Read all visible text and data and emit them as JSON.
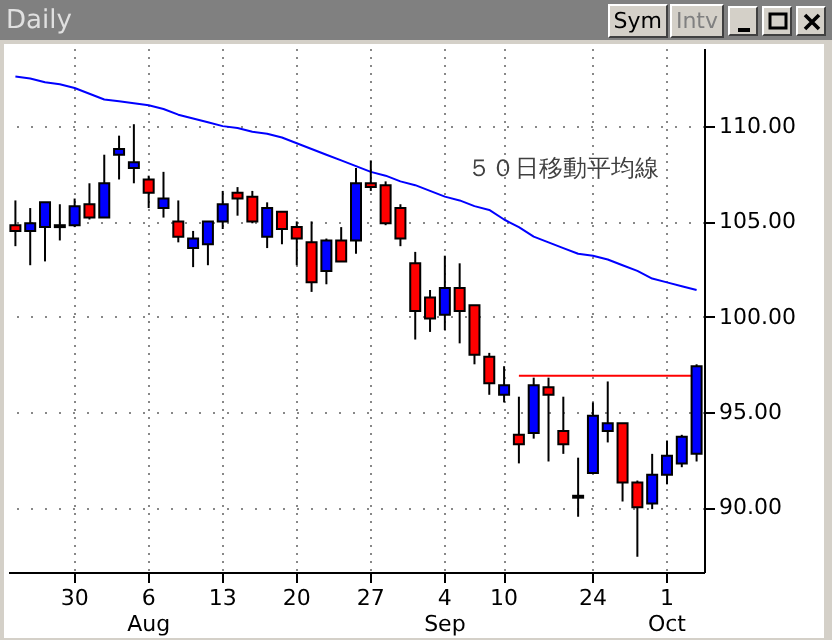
{
  "chart_data": {
    "type": "candlestick",
    "title": "Daily",
    "annotations": [
      "Sym",
      "Intv"
    ],
    "categories": [
      null,
      null,
      null,
      null,
      "30",
      null,
      null,
      null,
      null,
      "6\nAug",
      null,
      null,
      null,
      null,
      "13",
      null,
      null,
      null,
      null,
      "20",
      null,
      null,
      null,
      null,
      "27",
      null,
      null,
      null,
      null,
      "4\nSep",
      null,
      null,
      null,
      "10",
      null,
      null,
      null,
      null,
      null,
      "24",
      null,
      null,
      null,
      null,
      "1\nOct",
      null,
      null
    ],
    "ohlc": [
      [
        104.8,
        106.1,
        103.7,
        104.5
      ],
      [
        104.5,
        105.7,
        102.7,
        104.9
      ],
      [
        104.7,
        106.0,
        102.9,
        106.0
      ],
      [
        104.7,
        105.9,
        104.0,
        104.8
      ],
      [
        104.8,
        106.2,
        104.7,
        105.8
      ],
      [
        105.9,
        107.0,
        105.1,
        105.2
      ],
      [
        105.2,
        108.5,
        105.2,
        107.0
      ],
      [
        108.5,
        109.5,
        107.2,
        108.8
      ],
      [
        107.8,
        110.1,
        107.0,
        108.1
      ],
      [
        107.2,
        107.4,
        105.7,
        106.5
      ],
      [
        105.7,
        107.6,
        105.2,
        106.2
      ],
      [
        105.0,
        106.1,
        103.9,
        104.2
      ],
      [
        103.6,
        104.5,
        102.6,
        104.1
      ],
      [
        103.8,
        105.0,
        102.7,
        105.0
      ],
      [
        105.0,
        106.6,
        104.6,
        105.9
      ],
      [
        106.5,
        106.8,
        105.3,
        106.2
      ],
      [
        106.3,
        106.6,
        104.9,
        105.0
      ],
      [
        104.2,
        106.0,
        103.6,
        105.7
      ],
      [
        105.5,
        105.5,
        103.8,
        104.6
      ],
      [
        104.7,
        105.0,
        102.7,
        104.1
      ],
      [
        103.9,
        105.0,
        101.3,
        101.8
      ],
      [
        102.4,
        104.1,
        101.7,
        104.0
      ],
      [
        104.0,
        104.7,
        102.9,
        102.9
      ],
      [
        104.0,
        107.8,
        103.3,
        107.0
      ],
      [
        107.0,
        108.2,
        106.6,
        106.8
      ],
      [
        106.9,
        107.1,
        104.8,
        104.9
      ],
      [
        105.7,
        105.9,
        103.7,
        104.1
      ],
      [
        102.8,
        103.4,
        98.8,
        100.3
      ],
      [
        101.0,
        101.4,
        99.2,
        99.9
      ],
      [
        100.1,
        103.2,
        99.3,
        101.5
      ],
      [
        101.5,
        102.8,
        98.6,
        100.3
      ],
      [
        100.6,
        100.6,
        97.5,
        98.0
      ],
      [
        97.9,
        98.1,
        95.9,
        96.5
      ],
      [
        95.9,
        97.4,
        95.5,
        96.4
      ],
      [
        93.8,
        95.8,
        92.3,
        93.3
      ],
      [
        93.9,
        96.8,
        93.6,
        96.4
      ],
      [
        96.3,
        96.8,
        92.4,
        95.9
      ],
      [
        94.0,
        95.8,
        92.8,
        93.3
      ],
      [
        90.6,
        92.6,
        89.5,
        90.5
      ],
      [
        91.8,
        95.5,
        91.8,
        94.8
      ],
      [
        94.0,
        96.6,
        93.4,
        94.4
      ],
      [
        94.4,
        94.4,
        90.3,
        91.3
      ],
      [
        91.3,
        91.4,
        87.4,
        90.0
      ],
      [
        90.2,
        92.8,
        89.9,
        91.7
      ],
      [
        91.7,
        93.5,
        91.2,
        92.7
      ],
      [
        92.3,
        93.8,
        92.1,
        93.7
      ],
      [
        92.8,
        97.5,
        92.4,
        97.4
      ]
    ],
    "colors": [
      "#ff0000",
      "#0000ff",
      "#0000ff",
      "#0000ff",
      "#0000ff",
      "#ff0000",
      "#0000ff",
      "#0000ff",
      "#0000ff",
      "#ff0000",
      "#0000ff",
      "#ff0000",
      "#0000ff",
      "#0000ff",
      "#0000ff",
      "#ff0000",
      "#ff0000",
      "#0000ff",
      "#ff0000",
      "#ff0000",
      "#ff0000",
      "#0000ff",
      "#ff0000",
      "#0000ff",
      "#ff0000",
      "#ff0000",
      "#ff0000",
      "#ff0000",
      "#ff0000",
      "#0000ff",
      "#ff0000",
      "#ff0000",
      "#ff0000",
      "#0000ff",
      "#ff0000",
      "#0000ff",
      "#ff0000",
      "#ff0000",
      "#ff0000",
      "#0000ff",
      "#0000ff",
      "#ff0000",
      "#ff0000",
      "#0000ff",
      "#0000ff",
      "#0000ff",
      "#0000ff"
    ],
    "series": [
      {
        "name": "５０日移動平均線",
        "type": "line",
        "color": "#0000ff",
        "values": [
          112.6,
          112.5,
          112.3,
          112.2,
          112.0,
          111.7,
          111.4,
          111.3,
          111.2,
          111.1,
          110.9,
          110.6,
          110.4,
          110.2,
          110.0,
          109.9,
          109.7,
          109.6,
          109.4,
          109.1,
          108.8,
          108.5,
          108.2,
          107.9,
          107.6,
          107.4,
          107.1,
          106.9,
          106.6,
          106.3,
          106.1,
          105.8,
          105.6,
          105.1,
          104.7,
          104.2,
          103.9,
          103.6,
          103.3,
          103.2,
          103.0,
          102.7,
          102.4,
          102.0,
          101.8,
          101.6,
          101.4
        ]
      },
      {
        "type": "line",
        "color": "#ff0000",
        "values": [
          null,
          null,
          null,
          null,
          null,
          null,
          null,
          null,
          null,
          null,
          null,
          null,
          null,
          null,
          null,
          null,
          null,
          null,
          null,
          null,
          null,
          null,
          null,
          null,
          null,
          null,
          null,
          null,
          null,
          null,
          null,
          null,
          null,
          null,
          96.9,
          96.9,
          96.9,
          96.9,
          96.9,
          96.9,
          96.9,
          96.9,
          96.9,
          96.9,
          96.9,
          96.9,
          96.9
        ]
      }
    ],
    "ylim": [
      86.6,
      114.1
    ],
    "yticks": [
      {
        "value": 90,
        "label": "90.00"
      },
      {
        "value": 95,
        "label": "95.00"
      },
      {
        "value": 100,
        "label": "100.00"
      },
      {
        "value": 105,
        "label": "105.00"
      },
      {
        "value": 110,
        "label": "110.00"
      }
    ],
    "grid": true
  }
}
